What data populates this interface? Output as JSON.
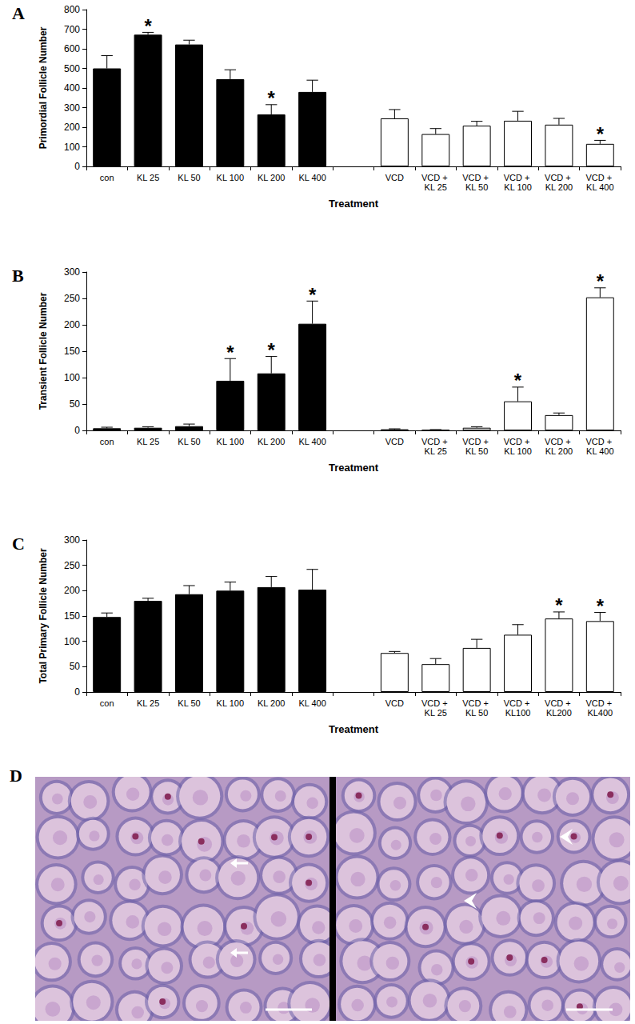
{
  "chart_data": [
    {
      "type": "bar",
      "title": "A",
      "x_label": "Treatment",
      "y_label": "Primordial Follicle Number",
      "categories": [
        "con",
        "KL 25",
        "KL 50",
        "KL 100",
        "KL 200",
        "KL 400",
        null,
        "VCD",
        "VCD + KL 25",
        "VCD + KL 50",
        "VCD + KL 100",
        "VCD + KL 200",
        "VCD + KL 400"
      ],
      "values": [
        500,
        672,
        622,
        445,
        265,
        380,
        null,
        245,
        165,
        208,
        233,
        213,
        115
      ],
      "error": [
        65,
        12,
        22,
        48,
        50,
        60,
        null,
        45,
        28,
        22,
        48,
        32,
        18
      ],
      "significance": [
        null,
        "*",
        null,
        null,
        "*",
        null,
        null,
        null,
        null,
        null,
        null,
        null,
        "*"
      ],
      "colors": [
        "#000000",
        "#000000",
        "#000000",
        "#000000",
        "#000000",
        "#000000",
        null,
        "#ffffff",
        "#ffffff",
        "#ffffff",
        "#ffffff",
        "#ffffff",
        "#ffffff"
      ],
      "ylim": [
        0,
        800
      ],
      "yticks": [
        0,
        100,
        200,
        300,
        400,
        500,
        600,
        700,
        800
      ],
      "grid": false
    },
    {
      "type": "bar",
      "title": "B",
      "x_label": "Treatment",
      "y_label": "Transient Follicle Number",
      "categories": [
        "con",
        "KL 25",
        "KL 50",
        "KL 100",
        "KL 200",
        "KL 400",
        null,
        "VCD",
        "VCD + KL 25",
        "VCD + KL 50",
        "VCD + KL 100",
        "VCD + KL 200",
        "VCD + KL 400"
      ],
      "values": [
        4,
        5,
        8,
        94,
        108,
        202,
        null,
        2,
        1,
        5,
        55,
        29,
        252
      ],
      "error": [
        2,
        2,
        4,
        42,
        32,
        43,
        null,
        1,
        0.5,
        2,
        27,
        4,
        18
      ],
      "significance": [
        null,
        null,
        null,
        "*",
        "*",
        "*",
        null,
        null,
        null,
        null,
        "*",
        null,
        "*"
      ],
      "colors": [
        "#000000",
        "#000000",
        "#000000",
        "#000000",
        "#000000",
        "#000000",
        null,
        "#ffffff",
        "#ffffff",
        "#ffffff",
        "#ffffff",
        "#ffffff",
        "#ffffff"
      ],
      "ylim": [
        0,
        300
      ],
      "yticks": [
        0,
        50,
        100,
        150,
        200,
        250,
        300
      ],
      "grid": false
    },
    {
      "type": "bar",
      "title": "C",
      "x_label": "Treatment",
      "y_label": "Total Primary Follicle Number",
      "categories": [
        "con",
        "KL 25",
        "KL 50",
        "KL 100",
        "KL 200",
        "KL 400",
        null,
        "VCD",
        "VCD + KL 25",
        "VCD + KL 50",
        "VCD + KL100",
        "VCD + KL200",
        "VCD + KL400"
      ],
      "values": [
        148,
        180,
        193,
        200,
        207,
        202,
        null,
        77,
        55,
        87,
        113,
        145,
        140
      ],
      "error": [
        8,
        5,
        17,
        17,
        21,
        40,
        null,
        3,
        11,
        17,
        20,
        13,
        17
      ],
      "significance": [
        null,
        null,
        null,
        null,
        null,
        null,
        null,
        null,
        null,
        null,
        null,
        "*",
        "*"
      ],
      "colors": [
        "#000000",
        "#000000",
        "#000000",
        "#000000",
        "#000000",
        "#000000",
        null,
        "#ffffff",
        "#ffffff",
        "#ffffff",
        "#ffffff",
        "#ffffff",
        "#ffffff"
      ],
      "ylim": [
        0,
        300
      ],
      "yticks": [
        0,
        50,
        100,
        150,
        200,
        250,
        300
      ],
      "grid": false
    }
  ],
  "image_panel": {
    "label": "D"
  }
}
